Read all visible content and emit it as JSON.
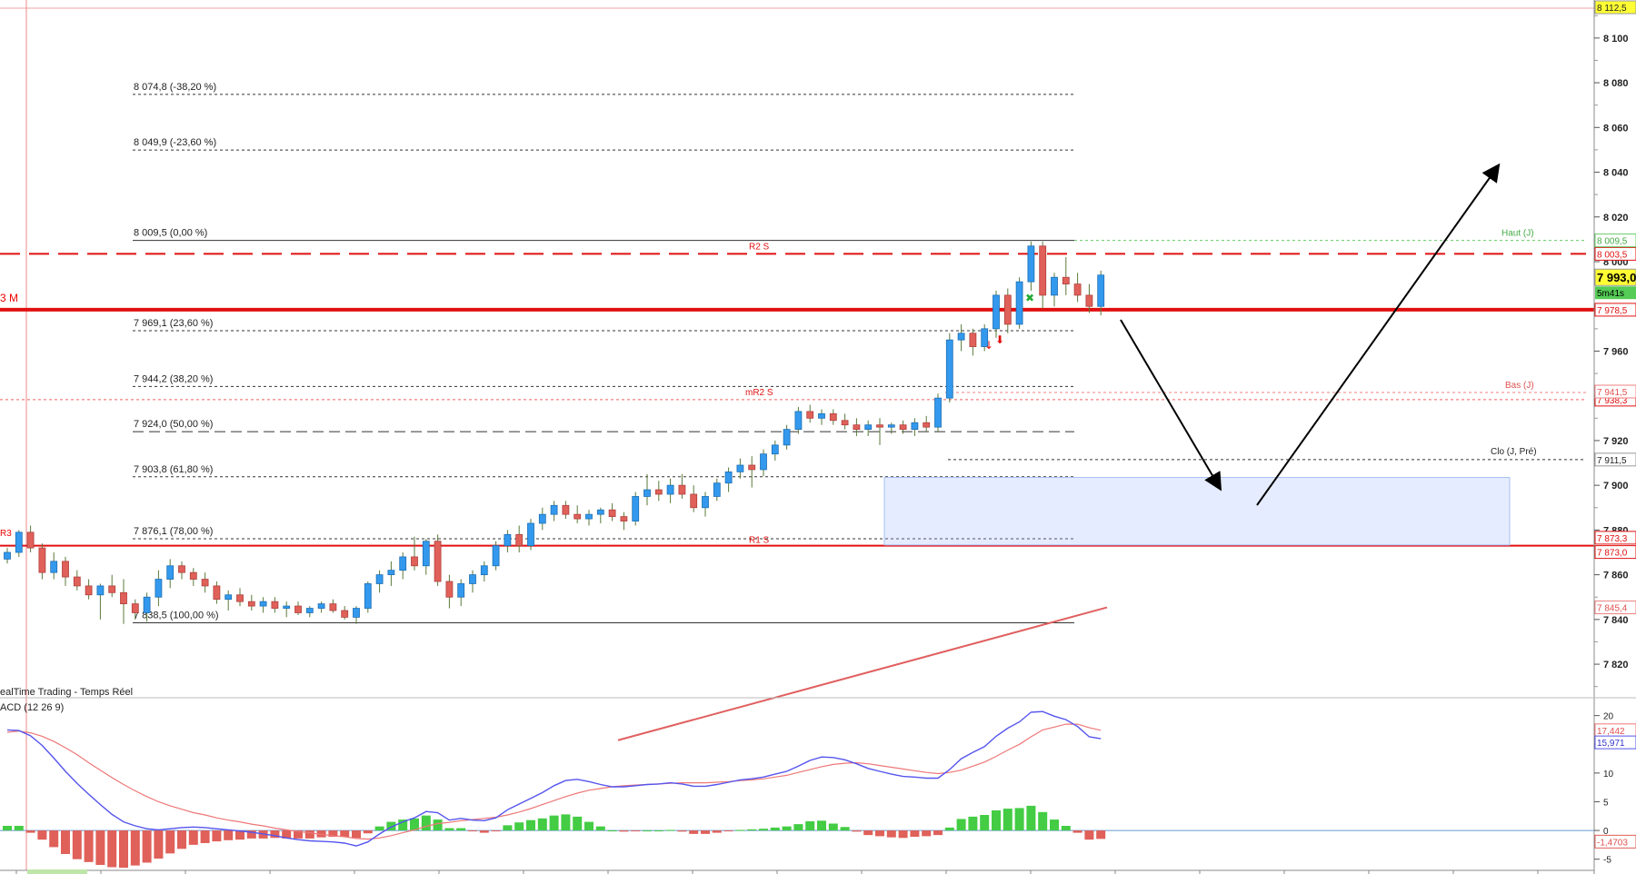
{
  "chart_data": {
    "type": "candlestick",
    "price_axis": {
      "ylim": [
        7805,
        8117
      ],
      "ticks": [
        8100,
        8080,
        8060,
        8040,
        8020,
        8000,
        7980,
        7960,
        7940,
        7920,
        7900,
        7880,
        7860,
        7840,
        7820
      ],
      "tick_labels": [
        "8 100",
        "8 080",
        "8 060",
        "8 040",
        "8 020",
        "8 000",
        "7 980",
        "7 960",
        "7 940",
        "7 920",
        "7 900",
        "7 880",
        "7 860",
        "7 840",
        "7 820"
      ]
    },
    "fib_levels": [
      {
        "value": 8074.8,
        "label": "8 074,8 (-38,20 %)",
        "style": "dotted"
      },
      {
        "value": 8049.9,
        "label": "8 049,9 (-23,60 %)",
        "style": "dotted"
      },
      {
        "value": 8009.5,
        "label": "8 009,5 (0,00 %)",
        "style": "solid"
      },
      {
        "value": 7969.1,
        "label": "7 969,1 (23,60 %)",
        "style": "dotted"
      },
      {
        "value": 7944.2,
        "label": "7 944,2 (38,20 %)",
        "style": "dotted"
      },
      {
        "value": 7924.0,
        "label": "7 924,0 (50,00 %)",
        "style": "dashed"
      },
      {
        "value": 7903.8,
        "label": "7 903,8 (61,80 %)",
        "style": "dotted"
      },
      {
        "value": 7876.1,
        "label": "7 876,1 (78,00 %)",
        "style": "dotted"
      },
      {
        "value": 7838.5,
        "label": "7 838,5 (100,00 %)",
        "style": "solid"
      }
    ],
    "pivot_levels": [
      {
        "value": 8003.5,
        "label": "R2 S",
        "tag": "8 003,5"
      },
      {
        "value": 7938.3,
        "label": "mR2 S",
        "tag": "7 938,3"
      },
      {
        "value": 7873.0,
        "label": "R1 S",
        "tag": "7 873,0"
      },
      {
        "value": 7978.5,
        "label": "3 M",
        "tag": "7 978,5"
      }
    ],
    "reference_lines": [
      {
        "value": 8009.5,
        "label": "Haut (J)",
        "tag": "8 009,5"
      },
      {
        "value": 7941.5,
        "label": "Bas (J)",
        "tag": "7 941,5"
      },
      {
        "value": 7911.5,
        "label": "Clo (J, Pré)",
        "tag": "7 911,5"
      }
    ],
    "top_tag": "8 112,5",
    "last_price": "7 993,0",
    "timer": "5m41s",
    "mid_left_label": "R3",
    "moving_average": {
      "from": 7786,
      "to": 7845.4,
      "tag": "7 845,4"
    },
    "zone": {
      "top": 7903.5,
      "bottom": 7873.3,
      "tag": "7 873,3"
    },
    "candles": [
      [
        7867,
        7872,
        7865,
        7870
      ],
      [
        7870,
        7880,
        7868,
        7879
      ],
      [
        7879,
        7882,
        7870,
        7872
      ],
      [
        7872,
        7874,
        7858,
        7861
      ],
      [
        7861,
        7870,
        7858,
        7866
      ],
      [
        7866,
        7868,
        7855,
        7859
      ],
      [
        7859,
        7862,
        7853,
        7855
      ],
      [
        7855,
        7858,
        7849,
        7851
      ],
      [
        7851,
        7856,
        7840,
        7855
      ],
      [
        7855,
        7860,
        7850,
        7852
      ],
      [
        7852,
        7858,
        7838,
        7847
      ],
      [
        7847,
        7849,
        7840,
        7843
      ],
      [
        7843,
        7852,
        7839,
        7850
      ],
      [
        7850,
        7862,
        7846,
        7858
      ],
      [
        7858,
        7867,
        7854,
        7864
      ],
      [
        7864,
        7866,
        7858,
        7861
      ],
      [
        7861,
        7863,
        7855,
        7858
      ],
      [
        7858,
        7861,
        7852,
        7855
      ],
      [
        7855,
        7857,
        7847,
        7849
      ],
      [
        7849,
        7853,
        7844,
        7851
      ],
      [
        7851,
        7854,
        7846,
        7848
      ],
      [
        7848,
        7851,
        7844,
        7846
      ],
      [
        7846,
        7850,
        7843,
        7848
      ],
      [
        7848,
        7850,
        7843,
        7845
      ],
      [
        7845,
        7848,
        7841,
        7846
      ],
      [
        7846,
        7848,
        7842,
        7843
      ],
      [
        7843,
        7846,
        7841,
        7845
      ],
      [
        7845,
        7848,
        7843,
        7847
      ],
      [
        7847,
        7849,
        7843,
        7844
      ],
      [
        7844,
        7846,
        7840,
        7841
      ],
      [
        7841,
        7846,
        7838,
        7845
      ],
      [
        7845,
        7857,
        7843,
        7856
      ],
      [
        7856,
        7862,
        7852,
        7860
      ],
      [
        7860,
        7866,
        7855,
        7862
      ],
      [
        7862,
        7870,
        7858,
        7868
      ],
      [
        7868,
        7877,
        7862,
        7864
      ],
      [
        7864,
        7876,
        7860,
        7875
      ],
      [
        7875,
        7878,
        7855,
        7857
      ],
      [
        7857,
        7860,
        7845,
        7850
      ],
      [
        7850,
        7858,
        7846,
        7856
      ],
      [
        7856,
        7862,
        7852,
        7860
      ],
      [
        7860,
        7866,
        7857,
        7864
      ],
      [
        7864,
        7875,
        7862,
        7873
      ],
      [
        7873,
        7880,
        7870,
        7878
      ],
      [
        7878,
        7882,
        7870,
        7873
      ],
      [
        7873,
        7885,
        7871,
        7883
      ],
      [
        7883,
        7890,
        7880,
        7887
      ],
      [
        7887,
        7893,
        7884,
        7891
      ],
      [
        7891,
        7893,
        7885,
        7887
      ],
      [
        7887,
        7891,
        7883,
        7885
      ],
      [
        7885,
        7889,
        7882,
        7887
      ],
      [
        7887,
        7890,
        7883,
        7889
      ],
      [
        7889,
        7892,
        7884,
        7886
      ],
      [
        7886,
        7888,
        7880,
        7884
      ],
      [
        7884,
        7897,
        7882,
        7895
      ],
      [
        7895,
        7905,
        7891,
        7898
      ],
      [
        7898,
        7902,
        7893,
        7896
      ],
      [
        7896,
        7903,
        7892,
        7900
      ],
      [
        7900,
        7905,
        7894,
        7896
      ],
      [
        7896,
        7900,
        7888,
        7890
      ],
      [
        7890,
        7897,
        7886,
        7895
      ],
      [
        7895,
        7903,
        7893,
        7901
      ],
      [
        7901,
        7908,
        7897,
        7906
      ],
      [
        7906,
        7912,
        7903,
        7909
      ],
      [
        7909,
        7913,
        7899,
        7907
      ],
      [
        7907,
        7916,
        7904,
        7914
      ],
      [
        7914,
        7920,
        7911,
        7918
      ],
      [
        7918,
        7927,
        7916,
        7925
      ],
      [
        7925,
        7935,
        7923,
        7933
      ],
      [
        7933,
        7936,
        7928,
        7930
      ],
      [
        7930,
        7934,
        7927,
        7932
      ],
      [
        7932,
        7934,
        7927,
        7929
      ],
      [
        7929,
        7932,
        7925,
        7927
      ],
      [
        7927,
        7930,
        7922,
        7925
      ],
      [
        7925,
        7929,
        7922,
        7927
      ],
      [
        7927,
        7930,
        7918,
        7926
      ],
      [
        7926,
        7928,
        7923,
        7927
      ],
      [
        7927,
        7929,
        7923,
        7925
      ],
      [
        7925,
        7930,
        7922,
        7928
      ],
      [
        7928,
        7931,
        7924,
        7926
      ],
      [
        7926,
        7941,
        7924,
        7939
      ],
      [
        7939,
        7968,
        7937,
        7965
      ],
      [
        7965,
        7972,
        7960,
        7968
      ],
      [
        7968,
        7970,
        7958,
        7962
      ],
      [
        7962,
        7972,
        7960,
        7970
      ],
      [
        7970,
        7987,
        7966,
        7985
      ],
      [
        7985,
        7988,
        7968,
        7972
      ],
      [
        7972,
        7993,
        7970,
        7991
      ],
      [
        7991,
        8009,
        7987,
        8007
      ],
      [
        8007,
        8009,
        7979,
        7985
      ],
      [
        7985,
        7995,
        7980,
        7993
      ],
      [
        7993,
        8002,
        7985,
        7990
      ],
      [
        7990,
        7995,
        7982,
        7985
      ],
      [
        7985,
        7990,
        7977,
        7980
      ],
      [
        7980,
        7996,
        7976,
        7994
      ]
    ],
    "macd": {
      "label": "ACD (12 26 9)",
      "ylim": [
        -6,
        22
      ],
      "ticks": [
        20,
        15,
        10,
        5,
        0,
        -5
      ],
      "tick_labels": [
        "20",
        "15",
        "10",
        "5",
        "0",
        "-5"
      ],
      "signal_tag": "17,442",
      "macd_tag": "15,971",
      "hist_tag": "-1,4703",
      "macd_line": [
        17.5,
        17.4,
        16.5,
        14.8,
        12.6,
        10.3,
        8.2,
        6.3,
        4.5,
        2.8,
        1.5,
        0.8,
        0.3,
        0.1,
        0.3,
        0.5,
        0.6,
        0.5,
        0.3,
        0.1,
        -0.1,
        -0.3,
        -0.6,
        -0.9,
        -1.3,
        -1.6,
        -1.8,
        -1.9,
        -2.0,
        -2.2,
        -2.7,
        -2.0,
        -0.6,
        0.6,
        1.5,
        2.2,
        3.3,
        3.1,
        1.8,
        2.1,
        1.8,
        1.7,
        2.2,
        3.6,
        4.6,
        5.6,
        6.6,
        7.8,
        8.7,
        8.9,
        8.5,
        8.0,
        7.6,
        7.6,
        7.8,
        8.0,
        8.1,
        8.3,
        8.1,
        7.7,
        7.7,
        8.0,
        8.4,
        8.8,
        9.0,
        9.3,
        9.8,
        10.3,
        11.2,
        12.2,
        12.8,
        12.7,
        12.3,
        11.6,
        10.8,
        10.3,
        9.8,
        9.4,
        9.3,
        9.1,
        9.1,
        10.6,
        12.5,
        13.6,
        14.6,
        16.4,
        17.8,
        18.9,
        20.6,
        20.7,
        19.9,
        19.3,
        18.1,
        16.3,
        15.97
      ],
      "signal_line": [
        17.1,
        17.3,
        17.0,
        16.4,
        15.5,
        14.4,
        13.2,
        11.8,
        10.5,
        9.2,
        8.0,
        6.9,
        5.9,
        5.0,
        4.3,
        3.7,
        3.1,
        2.7,
        2.2,
        1.8,
        1.5,
        1.1,
        0.8,
        0.4,
        0.1,
        -0.2,
        -0.4,
        -0.7,
        -0.9,
        -1.1,
        -1.4,
        -1.5,
        -1.3,
        -0.9,
        -0.4,
        0.1,
        0.7,
        1.2,
        1.4,
        1.7,
        1.9,
        2.1,
        2.3,
        2.7,
        3.2,
        3.8,
        4.5,
        5.2,
        5.9,
        6.5,
        7.0,
        7.3,
        7.6,
        7.8,
        7.9,
        8.0,
        8.1,
        8.2,
        8.3,
        8.3,
        8.3,
        8.4,
        8.5,
        8.7,
        8.8,
        9.0,
        9.3,
        9.6,
        10.1,
        10.6,
        11.1,
        11.5,
        11.7,
        11.8,
        11.6,
        11.3,
        11.0,
        10.7,
        10.4,
        10.1,
        9.9,
        10.1,
        10.5,
        11.2,
        11.9,
        12.9,
        14.0,
        15.0,
        16.3,
        17.5,
        18.0,
        18.5,
        18.5,
        17.9,
        17.442
      ],
      "histogram": [
        0.8,
        0.8,
        -0.4,
        -1.6,
        -2.9,
        -4.1,
        -5.0,
        -5.5,
        -6.0,
        -6.4,
        -6.5,
        -6.1,
        -5.6,
        -4.9,
        -4.0,
        -3.2,
        -2.5,
        -2.2,
        -1.9,
        -1.7,
        -1.6,
        -1.4,
        -1.4,
        -1.3,
        -1.4,
        -1.4,
        -1.4,
        -1.2,
        -1.1,
        -1.1,
        -1.3,
        -0.5,
        0.7,
        1.5,
        1.9,
        2.1,
        2.6,
        1.9,
        0.4,
        0.4,
        -0.1,
        -0.4,
        -0.1,
        0.9,
        1.4,
        1.8,
        2.1,
        2.6,
        2.8,
        2.4,
        1.5,
        0.7,
        0.0,
        -0.2,
        -0.1,
        0.0,
        0.0,
        0.1,
        -0.2,
        -0.6,
        -0.6,
        -0.4,
        -0.1,
        0.1,
        0.2,
        0.3,
        0.5,
        0.7,
        1.1,
        1.6,
        1.7,
        1.2,
        0.6,
        -0.2,
        -0.8,
        -1.0,
        -1.2,
        -1.3,
        -1.1,
        -1.0,
        -0.8,
        0.5,
        2.0,
        2.4,
        2.7,
        3.5,
        3.8,
        3.9,
        4.3,
        3.2,
        1.9,
        0.8,
        -0.4,
        -1.6,
        -1.47
      ]
    },
    "footer_label": "ealTime Trading - Temps Réel"
  }
}
